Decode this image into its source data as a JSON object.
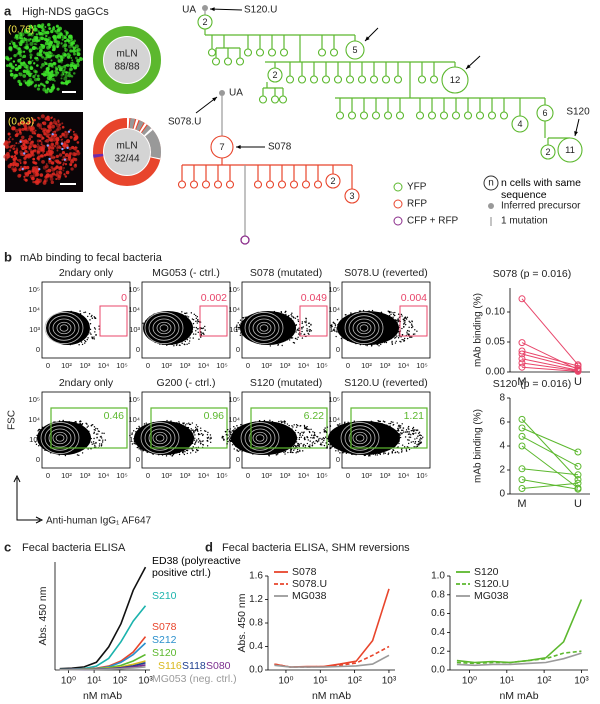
{
  "panel_labels": [
    "a",
    "b",
    "c",
    "d"
  ],
  "panel_a": {
    "title": "High-NDS gaGCs",
    "images": [
      {
        "score": "(0.76)"
      },
      {
        "score": "(0.83)"
      }
    ],
    "donuts": [
      {
        "tissue": "mLN",
        "count": "88/88"
      },
      {
        "tissue": "mLN",
        "count": "32/44"
      }
    ],
    "legend": [
      "YFP",
      "RFP",
      "CFP + RFP",
      "n",
      "n cells with same sequence",
      "Inferred precursor",
      "1 mutation"
    ]
  },
  "lineage": {
    "green": {
      "root": "UA",
      "probe": "S120.U",
      "target": "S120",
      "nodes": [
        2,
        5,
        12,
        2,
        4,
        6,
        2,
        11
      ]
    },
    "red": {
      "root": "UA",
      "probe": "S078.U",
      "target": "S078",
      "nodes": [
        7,
        2,
        3
      ]
    }
  },
  "flow": {
    "title": "mAb binding to fecal bacteria",
    "ylabel": "FSC",
    "xlabel": "Anti-human IgG₁ AF647",
    "yticks": [
      "0",
      "10³",
      "10⁴",
      "10⁵"
    ],
    "xticks": [
      "0",
      "10²",
      "10³",
      "10⁴",
      "10⁵"
    ],
    "plots": [
      {
        "title": "2ndary only",
        "gate": 0,
        "color": "#e8456a"
      },
      {
        "title": "MG053 (- ctrl.)",
        "gate": 0.002,
        "color": "#e8456a"
      },
      {
        "title": "S078 (mutated)",
        "gate": 0.049,
        "color": "#e8456a"
      },
      {
        "title": "S078.U (reverted)",
        "gate": 0.004,
        "color": "#e8456a"
      },
      {
        "title": "2ndary only",
        "gate": 0.46,
        "color": "#5cb82e"
      },
      {
        "title": "G200 (- ctrl.)",
        "gate": 0.96,
        "color": "#5cb82e"
      },
      {
        "title": "S120 (mutated)",
        "gate": 6.22,
        "color": "#5cb82e"
      },
      {
        "title": "S120.U (reverted)",
        "gate": 1.21,
        "color": "#5cb82e"
      }
    ]
  },
  "chart_data": [
    {
      "type": "slope",
      "title": "S078 (p = 0.016)",
      "ylabel": "mAb binding (%)",
      "categories": [
        "M",
        "U"
      ],
      "color": "#e8456a",
      "ylim": [
        0,
        0.14
      ],
      "yticks": [
        {
          "value": 0,
          "label": "0.00"
        },
        {
          "value": 0.05,
          "label": "0.05"
        },
        {
          "value": 0.1,
          "label": "0.10"
        }
      ],
      "series": [
        {
          "values": [
            0.122,
            0.012
          ]
        },
        {
          "values": [
            0.049,
            0.004
          ]
        },
        {
          "values": [
            0.035,
            0.01
          ]
        },
        {
          "values": [
            0.03,
            0.006
          ]
        },
        {
          "values": [
            0.022,
            0.003
          ]
        },
        {
          "values": [
            0.015,
            0.002
          ]
        },
        {
          "values": [
            0.008,
            0.001
          ]
        }
      ]
    },
    {
      "type": "slope",
      "title": "S120 (p = 0.016)",
      "ylabel": "mAb binding (%)",
      "categories": [
        "M",
        "U"
      ],
      "color": "#5cb82e",
      "ylim": [
        0,
        8
      ],
      "yticks": [
        0,
        2,
        4,
        6,
        8
      ],
      "series": [
        {
          "values": [
            6.22,
            1.21
          ]
        },
        {
          "values": [
            5.5,
            3.5
          ]
        },
        {
          "values": [
            4.8,
            2.3
          ]
        },
        {
          "values": [
            4.0,
            0.5
          ]
        },
        {
          "values": [
            2.1,
            1.6
          ]
        },
        {
          "values": [
            1.2,
            0.4
          ]
        },
        {
          "values": [
            0.46,
            0.9
          ]
        }
      ]
    },
    {
      "type": "line",
      "title": "Fecal bacteria ELISA",
      "xlabel": "nM mAb",
      "ylabel": "Abs. 450 nm",
      "log_x": true,
      "legend": "right",
      "x": [
        0.46,
        1.37,
        4.1,
        12.3,
        37,
        111,
        333,
        1000
      ],
      "xlim": [
        0.3,
        1500
      ],
      "ylim": [
        0,
        4.2
      ],
      "xticks": [
        {
          "value": 1,
          "label": "10⁰"
        },
        {
          "value": 10,
          "label": "10¹"
        },
        {
          "value": 100,
          "label": "10²"
        },
        {
          "value": 1000,
          "label": "10³"
        }
      ],
      "series": [
        {
          "name": "ED38 (polyreactive positive ctrl.)",
          "color": "#111111",
          "values": [
            0.05,
            0.07,
            0.12,
            0.3,
            0.9,
            1.8,
            3.1,
            4.0
          ]
        },
        {
          "name": "S210",
          "color": "#1bb3ad",
          "values": [
            0.03,
            0.04,
            0.06,
            0.15,
            0.45,
            1.1,
            1.9,
            2.5
          ]
        },
        {
          "name": "S078",
          "color": "#e8452c",
          "values": [
            0.02,
            0.03,
            0.04,
            0.07,
            0.15,
            0.35,
            0.7,
            1.3
          ]
        },
        {
          "name": "S212",
          "color": "#2a8fcc",
          "values": [
            0.02,
            0.03,
            0.04,
            0.06,
            0.12,
            0.3,
            0.6,
            1.05
          ]
        },
        {
          "name": "S120",
          "color": "#5cb82e",
          "values": [
            0.02,
            0.02,
            0.03,
            0.05,
            0.09,
            0.18,
            0.35,
            0.6
          ]
        },
        {
          "name": "S116",
          "color": "#d9b81c",
          "values": [
            0.02,
            0.02,
            0.03,
            0.04,
            0.07,
            0.12,
            0.22,
            0.35
          ]
        },
        {
          "name": "S118",
          "color": "#1f3f8f",
          "values": [
            0.02,
            0.02,
            0.02,
            0.03,
            0.05,
            0.09,
            0.16,
            0.28
          ]
        },
        {
          "name": "S080",
          "color": "#7b2d8e",
          "values": [
            0.01,
            0.02,
            0.02,
            0.03,
            0.04,
            0.07,
            0.12,
            0.2
          ]
        },
        {
          "name": "MG053 (neg. ctrl.)",
          "color": "#9a9a9a",
          "values": [
            0.01,
            0.01,
            0.02,
            0.02,
            0.03,
            0.05,
            0.08,
            0.12
          ]
        }
      ]
    },
    {
      "type": "line",
      "title": "Fecal bacteria ELISA, SHM reversions",
      "xlabel": "nM mAb",
      "ylabel": "Abs. 450 nm",
      "log_x": true,
      "legend": "upper left",
      "x": [
        0.46,
        1.37,
        4.1,
        12.3,
        37,
        111,
        333,
        1000
      ],
      "xlim": [
        0.3,
        1500
      ],
      "ylim": [
        0,
        1.6
      ],
      "xticks": [
        {
          "value": 1,
          "label": "10⁰"
        },
        {
          "value": 10,
          "label": "10¹"
        },
        {
          "value": 100,
          "label": "10²"
        },
        {
          "value": 1000,
          "label": "10³"
        }
      ],
      "yticks": [
        {
          "value": 0,
          "label": "0.0"
        },
        {
          "value": 0.4,
          "label": "0.4"
        },
        {
          "value": 0.8,
          "label": "0.8"
        },
        {
          "value": 1.2,
          "label": "1.2"
        },
        {
          "value": 1.6,
          "label": "1.6"
        }
      ],
      "series": [
        {
          "name": "S078",
          "color": "#e8452c",
          "dashed": false,
          "values": [
            0.1,
            0.05,
            0.06,
            0.06,
            0.1,
            0.15,
            0.5,
            1.38
          ]
        },
        {
          "name": "S078.U",
          "color": "#e8452c",
          "dashed": true,
          "values": [
            0.1,
            0.05,
            0.05,
            0.06,
            0.08,
            0.12,
            0.25,
            0.4
          ]
        },
        {
          "name": "MG038",
          "color": "#9a9a9a",
          "dashed": false,
          "values": [
            0.08,
            0.05,
            0.05,
            0.05,
            0.06,
            0.07,
            0.1,
            0.25
          ]
        }
      ]
    },
    {
      "type": "line",
      "xlabel": "nM mAb",
      "log_x": true,
      "legend": "upper left",
      "x": [
        0.46,
        1.37,
        4.1,
        12.3,
        37,
        111,
        333,
        1000
      ],
      "xlim": [
        0.3,
        1500
      ],
      "ylim": [
        0,
        1.0
      ],
      "xticks": [
        {
          "value": 1,
          "label": "10⁰"
        },
        {
          "value": 10,
          "label": "10¹"
        },
        {
          "value": 100,
          "label": "10²"
        },
        {
          "value": 1000,
          "label": "10³"
        }
      ],
      "yticks": [
        {
          "value": 0,
          "label": "0.0"
        },
        {
          "value": 0.2,
          "label": "0.2"
        },
        {
          "value": 0.4,
          "label": "0.4"
        },
        {
          "value": 0.6,
          "label": "0.6"
        },
        {
          "value": 0.8,
          "label": "0.8"
        },
        {
          "value": 1.0,
          "label": "1.0"
        }
      ],
      "series": [
        {
          "name": "S120",
          "color": "#5cb82e",
          "dashed": false,
          "values": [
            0.1,
            0.08,
            0.09,
            0.08,
            0.1,
            0.13,
            0.3,
            0.75
          ]
        },
        {
          "name": "S120.U",
          "color": "#5cb82e",
          "dashed": true,
          "values": [
            0.08,
            0.07,
            0.08,
            0.08,
            0.1,
            0.12,
            0.18,
            0.2
          ]
        },
        {
          "name": "MG038",
          "color": "#9a9a9a",
          "dashed": false,
          "values": [
            0.06,
            0.05,
            0.06,
            0.06,
            0.07,
            0.08,
            0.12,
            0.18
          ]
        }
      ]
    }
  ]
}
